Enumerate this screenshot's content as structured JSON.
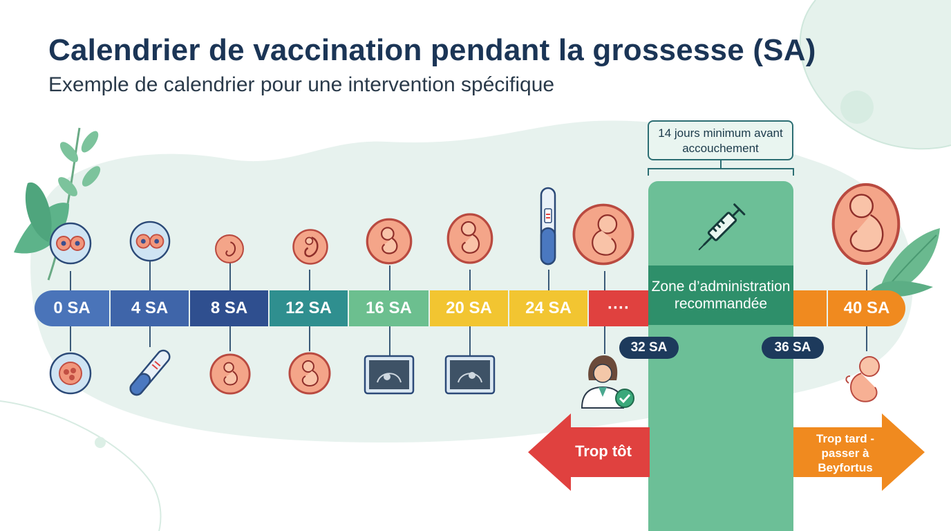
{
  "header": {
    "title": "Calendrier de vaccination pendant la grossesse (SA)",
    "subtitle": "Exemple de calendrier pour une intervention spécifique"
  },
  "timeline": {
    "segments": [
      {
        "label": "0 SA",
        "color": "#4a74b9"
      },
      {
        "label": "4 SA",
        "color": "#3f65a9"
      },
      {
        "label": "8 SA",
        "color": "#2f4f8f"
      },
      {
        "label": "12 SA",
        "color": "#2f8f8f"
      },
      {
        "label": "16 SA",
        "color": "#6cbf8f"
      },
      {
        "label": "20 SA",
        "color": "#f2c531"
      },
      {
        "label": "24 SA",
        "color": "#f2c531"
      },
      {
        "label": "····",
        "color": "#e0413f"
      },
      {
        "label": "",
        "color": "#f08a1f"
      },
      {
        "label": "40 SA",
        "color": "#f08a1f"
      }
    ],
    "markers": {
      "start": "32 SA",
      "end": "36 SA"
    }
  },
  "zone": {
    "label": "Zone d’administration recommandée",
    "callout": "14 jours minimum avant accouchement",
    "color": "#6cbf97"
  },
  "arrows": {
    "too_early": "Trop tôt",
    "too_late": "Trop tard - passer à Beyfortus",
    "too_early_color": "#e0413f",
    "too_late_color": "#f08a1f"
  },
  "icons": [
    "leaf-icon",
    "cell-icon",
    "embryo-icon",
    "fetus-icon",
    "pregnancy-test-icon",
    "ultrasound-icon",
    "syringe-icon",
    "doctor-icon",
    "check-icon"
  ]
}
